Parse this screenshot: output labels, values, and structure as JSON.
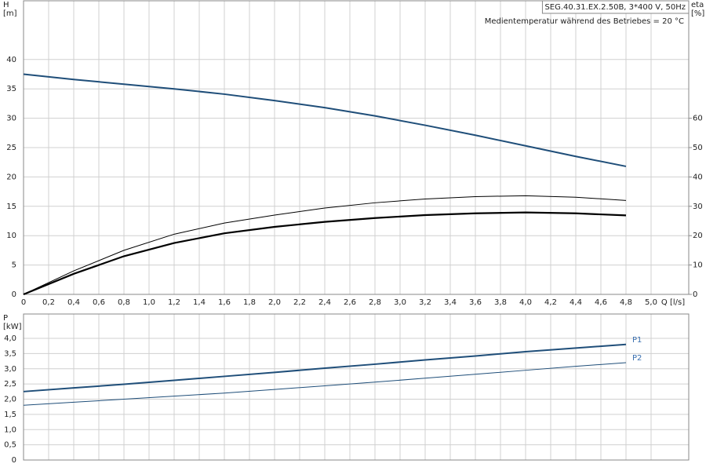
{
  "chart_data": [
    {
      "type": "line",
      "title": "SEG.40.31.EX.2.50B, 3*400 V, 50Hz",
      "subtitle": "Medientemperatur während des Betriebes = 20 °C",
      "ylabel": [
        "H",
        "[m]"
      ],
      "y2label": [
        "eta",
        "[%]"
      ],
      "xlabel": "Q [l/s]",
      "x": [
        0,
        0.4,
        0.8,
        1.2,
        1.6,
        2.0,
        2.4,
        2.8,
        3.2,
        3.6,
        4.0,
        4.4,
        4.8
      ],
      "series": [
        {
          "color": "#1f4e79",
          "width": 2,
          "values": [
            37.5,
            36.6,
            35.8,
            35.0,
            34.1,
            33.0,
            31.8,
            30.4,
            28.8,
            27.1,
            25.3,
            23.5,
            21.8
          ]
        },
        {
          "color": "#000000",
          "width": 1,
          "axis": "y2",
          "values": [
            0,
            8,
            15,
            20.5,
            24.3,
            27,
            29.4,
            31.2,
            32.5,
            33.3,
            33.6,
            33.1,
            32.0
          ]
        },
        {
          "color": "#000000",
          "width": 2.2,
          "axis": "y2",
          "values": [
            0,
            7,
            13,
            17.5,
            20.8,
            23,
            24.7,
            26,
            27,
            27.6,
            27.9,
            27.6,
            26.9
          ]
        }
      ],
      "xlim": [
        0,
        5.3
      ],
      "ylim": [
        0,
        50
      ],
      "y2lim": [
        0,
        100
      ],
      "xticks": [
        0,
        {
          "value": 0.2,
          "label": "0,2"
        },
        {
          "value": 0.4,
          "label": "0,4"
        },
        {
          "value": 0.6,
          "label": "0,6"
        },
        {
          "value": 0.8,
          "label": "0,8"
        },
        {
          "value": 1.0,
          "label": "1,0"
        },
        {
          "value": 1.2,
          "label": "1,2"
        },
        {
          "value": 1.4,
          "label": "1,4"
        },
        {
          "value": 1.6,
          "label": "1,6"
        },
        {
          "value": 1.8,
          "label": "1,8"
        },
        {
          "value": 2.0,
          "label": "2,0"
        },
        {
          "value": 2.2,
          "label": "2,2"
        },
        {
          "value": 2.4,
          "label": "2,4"
        },
        {
          "value": 2.6,
          "label": "2,6"
        },
        {
          "value": 2.8,
          "label": "2,8"
        },
        {
          "value": 3.0,
          "label": "3,0"
        },
        {
          "value": 3.2,
          "label": "3,2"
        },
        {
          "value": 3.4,
          "label": "3,4"
        },
        {
          "value": 3.6,
          "label": "3,6"
        },
        {
          "value": 3.8,
          "label": "3,8"
        },
        {
          "value": 4.0,
          "label": "4,0"
        },
        {
          "value": 4.2,
          "label": "4,2"
        },
        {
          "value": 4.4,
          "label": "4,4"
        },
        {
          "value": 4.6,
          "label": "4,6"
        },
        {
          "value": 4.8,
          "label": "4,8"
        },
        {
          "value": 5.0,
          "label": "5,0"
        }
      ],
      "yticks": [
        0,
        5,
        10,
        15,
        20,
        25,
        30,
        35,
        40
      ],
      "y2ticks": [
        0,
        10,
        20,
        30,
        40,
        50,
        60
      ],
      "grid": true
    },
    {
      "type": "line",
      "ylabel": [
        "P",
        "[kW]"
      ],
      "x": [
        0,
        0.4,
        0.8,
        1.2,
        1.6,
        2.0,
        2.4,
        2.8,
        3.2,
        3.6,
        4.0,
        4.4,
        4.8
      ],
      "series": [
        {
          "name": "P1",
          "color": "#1f4e79",
          "width": 2,
          "values": [
            2.25,
            2.37,
            2.49,
            2.62,
            2.75,
            2.88,
            3.02,
            3.15,
            3.29,
            3.42,
            3.56,
            3.68,
            3.8
          ]
        },
        {
          "name": "P2",
          "color": "#1f4e79",
          "width": 1,
          "values": [
            1.8,
            1.9,
            2.0,
            2.1,
            2.2,
            2.32,
            2.44,
            2.56,
            2.69,
            2.82,
            2.95,
            3.08,
            3.2
          ]
        }
      ],
      "xlim": [
        0,
        5.3
      ],
      "ylim": [
        0,
        4.8
      ],
      "yticks": [
        0,
        {
          "value": 0.5,
          "label": "0,5"
        },
        {
          "value": 1.0,
          "label": "1,0"
        },
        {
          "value": 1.5,
          "label": "1,5"
        },
        {
          "value": 2.0,
          "label": "2,0"
        },
        {
          "value": 2.5,
          "label": "2,5"
        },
        {
          "value": 3.0,
          "label": "3,0"
        },
        {
          "value": 3.5,
          "label": "3,5"
        },
        {
          "value": 4.0,
          "label": "4,0"
        }
      ],
      "grid": true
    }
  ]
}
